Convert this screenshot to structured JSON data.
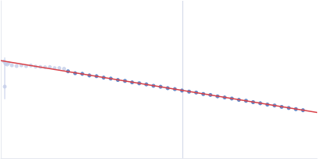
{
  "chart_data": {
    "type": "scatter",
    "xlim": [
      0,
      100
    ],
    "ylim": [
      0,
      100
    ],
    "xticks": [],
    "yticks": [],
    "tick_labels": false,
    "grid": false,
    "vertical_line": {
      "x": 57.5,
      "color": "#cdd4e6"
    },
    "series": [
      {
        "type": "scatter",
        "color": "#c3cde8",
        "marker": "circle",
        "x": [
          1,
          1.5,
          2,
          2.5,
          3.5,
          5,
          6.5,
          8,
          9.5,
          11,
          12.5,
          14,
          15.5,
          17,
          18.5,
          20
        ],
        "values": [
          61.5,
          60,
          59.5,
          60.5,
          59,
          58.6,
          59,
          58.5,
          58.9,
          58.2,
          58,
          57.8,
          57.9,
          57.2,
          57.3,
          56.8
        ]
      },
      {
        "type": "scatter",
        "color": "#c3cde8",
        "marker": "circle",
        "x": [
          1.25
        ],
        "values": [
          45.5
        ],
        "error_low": [
          37.5
        ],
        "error_high": [
          64
        ]
      },
      {
        "type": "scatter",
        "color": "#3d6ab8",
        "marker": "circle",
        "x": [
          21.25,
          23.5,
          25.75,
          28,
          30.25,
          32.5,
          34.75,
          37,
          39.25,
          41.5,
          43.75,
          46,
          48.25,
          50.5,
          52.75,
          55,
          57.25,
          59.5,
          61.75,
          64,
          66.25,
          68.5,
          70.75,
          73,
          75.25,
          77.5,
          79.75,
          82,
          84.25,
          86.5,
          88.75,
          91,
          93.25,
          95.5
        ],
        "values": [
          55.2,
          54.0,
          53.6,
          52.6,
          52.1,
          51.2,
          50.6,
          49.7,
          49.1,
          48.2,
          47.6,
          46.9,
          46.0,
          45.4,
          44.5,
          43.9,
          43.0,
          42.3,
          41.7,
          40.8,
          40.2,
          39.3,
          38.6,
          37.9,
          37.1,
          36.5,
          35.6,
          34.9,
          34.1,
          33.5,
          32.6,
          31.9,
          31.2,
          30.5
        ]
      },
      {
        "type": "line",
        "color": "#d9434a",
        "line_style": "solid",
        "x": [
          0,
          100
        ],
        "values": [
          62,
          29
        ]
      }
    ]
  }
}
